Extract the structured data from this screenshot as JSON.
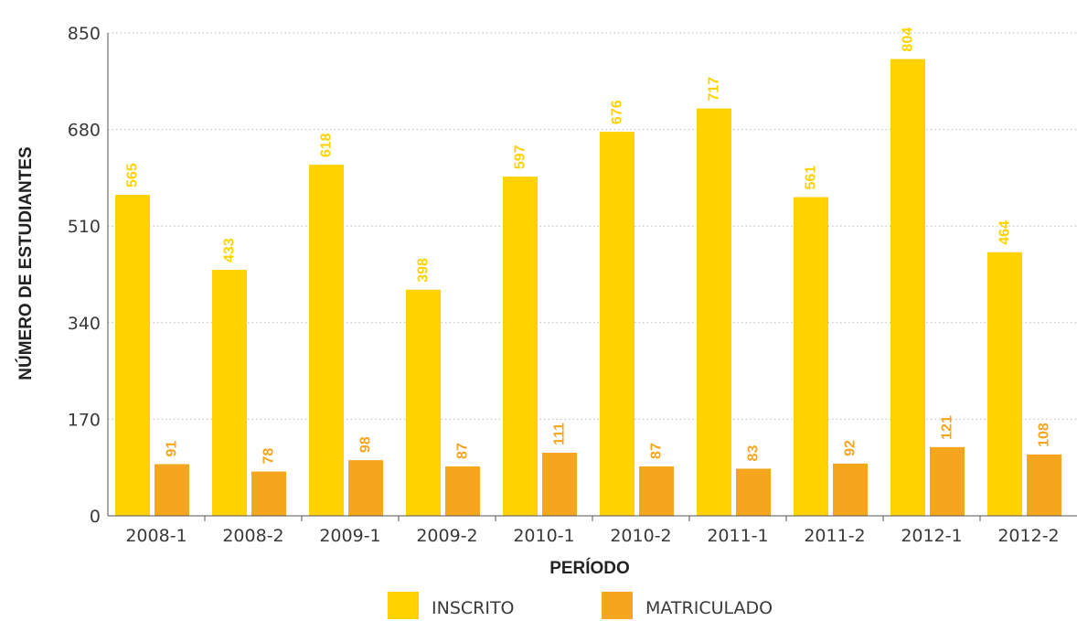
{
  "chart_data": {
    "type": "bar",
    "title": "",
    "xlabel": "PERÍODO",
    "ylabel": "NÚMERO DE ESTUDIANTES",
    "ylim": [
      0,
      850
    ],
    "yticks": [
      0,
      170,
      340,
      510,
      680,
      850
    ],
    "grid": true,
    "legend_position": "bottom-center",
    "categories": [
      "2008-1",
      "2008-2",
      "2009-1",
      "2009-2",
      "2010-1",
      "2010-2",
      "2011-1",
      "2011-2",
      "2012-1",
      "2012-2"
    ],
    "series": [
      {
        "name": "INSCRITO",
        "color": "#FFD200",
        "label_color": "#FFD200",
        "values": [
          565,
          433,
          618,
          398,
          597,
          676,
          717,
          561,
          804,
          464
        ]
      },
      {
        "name": "MATRICULADO",
        "color": "#F5A51E",
        "label_color": "#F5A51E",
        "values": [
          91,
          78,
          98,
          87,
          111,
          87,
          83,
          92,
          121,
          108
        ]
      }
    ]
  }
}
